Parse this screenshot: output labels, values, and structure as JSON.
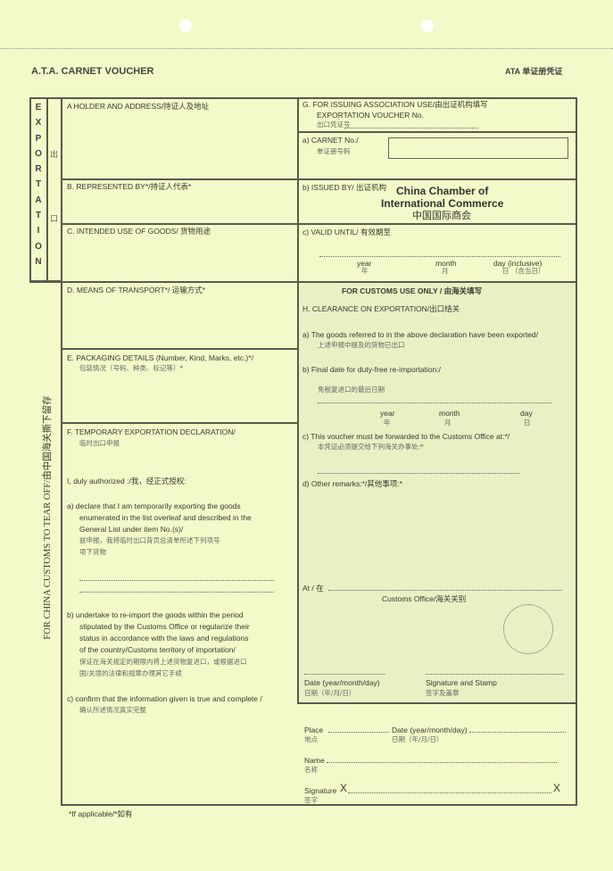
{
  "header": {
    "title": "A.T.A. CARNET VOUCHER",
    "title_cn": "ATA 单证册凭证"
  },
  "side": {
    "export_letters": [
      "E",
      "X",
      "P",
      "O",
      "R",
      "T",
      "A",
      "T",
      "I",
      "O",
      "N"
    ],
    "export_cn_1": "出",
    "export_cn_2": "口",
    "tear_off": "FOR CHINA CUSTOMS TO TEAR OFF/由中国海关撕下留存"
  },
  "A": {
    "label": "A  HOLDER AND ADDRESS/持证人及地址"
  },
  "B": {
    "label": "B.  REPRESENTED BY*/持证人代表*"
  },
  "C": {
    "label": "C.  INTENDED USE OF GOODS/  货物用途"
  },
  "D": {
    "label": "D.  MEANS OF TRANSPORT*/  运输方式*"
  },
  "E": {
    "label": "E.  PACKAGING DETAILS (Number, Kind, Marks, etc.)*/",
    "label_cn": "包装情况（号码、种类、标记等）*"
  },
  "F": {
    "label": "F.  TEMPORARY EXPORTATION DECLARATION/",
    "label_cn": "临时出口申报",
    "authorized": "I, duly authorized :/我，经正式授权:",
    "a": [
      "a) declare that I am temporarily exporting the goods",
      "enumerated in the list overleaf and described in the",
      "General List under item No.(s)/"
    ],
    "a_cn": [
      "兹申报，我将临时出口背页总清单所述下列项号",
      "项下货物"
    ],
    "b": [
      "b)  undertake to re-import the goods within the period",
      "stipulated by the Customs Office or regularize their",
      "status in accordance with the laws and regulations",
      "of the country/Customs territory of importation/"
    ],
    "b_cn": [
      "保证在海关规定的期限内将上述货物复进口，或根据进口",
      "国/关境的法律和规章办理其它手续"
    ],
    "c": "c)  confirm that the information given is true and complete /",
    "c_cn": "确认所述情况真实完整"
  },
  "G": {
    "label": "G.  FOR ISSUING ASSOCIATION USE/由出证机构填写",
    "voucher_no": "EXPORTATION VOUCHER No.",
    "voucher_no_cn": "出口凭证号",
    "a_label": "a)  CARNET No./",
    "a_cn": "单证册号码",
    "carnet_no": "",
    "b_label": "b)  ISSUED BY/  出证机构",
    "issuer_1": "China Chamber of",
    "issuer_2": "International Commerce",
    "issuer_cn": "中国国际商会",
    "c_label": "c)  VALID UNTIL/ 有效期至",
    "year": "year",
    "year_cn": "年",
    "month": "month",
    "month_cn": "月",
    "day": "day (inclusive)",
    "day_cn": "日 （含当日）"
  },
  "H": {
    "customs_only": "FOR CUSTOMS USE ONLY /  由海关填写",
    "label": "H.   CLEARANCE ON EXPORTATION/出口结关",
    "a": "a)    The goods referred to in the above declaration have been exported/",
    "a_cn": "上述申报中提及的货物已出口",
    "b": "b)    Final date for duty-free re-importation:/",
    "b_cn": "免税复进口的最后日期",
    "year": "year",
    "year_cn": "年",
    "month": "month",
    "month_cn": "月",
    "day": "day",
    "day_cn": "日",
    "c": "c)    This voucher must be forwarded to the Customs Office at:*/",
    "c_cn": "本凭证必须提交给下列海关办事处:*",
    "d": "d)     Other remarks:*/其他事项:*",
    "at": "At /  在",
    "customs_office": "Customs Office/海关关别",
    "date": "Date (year/month/day)",
    "date_cn": "日期（年/月/日）",
    "sig": "Signature and Stamp",
    "sig_cn": "签字及盖章"
  },
  "bottom": {
    "place": "Place",
    "place_cn": "地点",
    "date": "Date (year/month/day)",
    "date_cn": "日期（年/月/日）",
    "name": "Name",
    "name_cn": "名称",
    "signature": "Signature",
    "signature_cn": "签字",
    "x": "X"
  },
  "footnote": "*If applicable/*如有",
  "colors": {
    "paper": "#f3f9c8",
    "customs_area": "#e8f0c4",
    "lines": "#5a5a50"
  }
}
